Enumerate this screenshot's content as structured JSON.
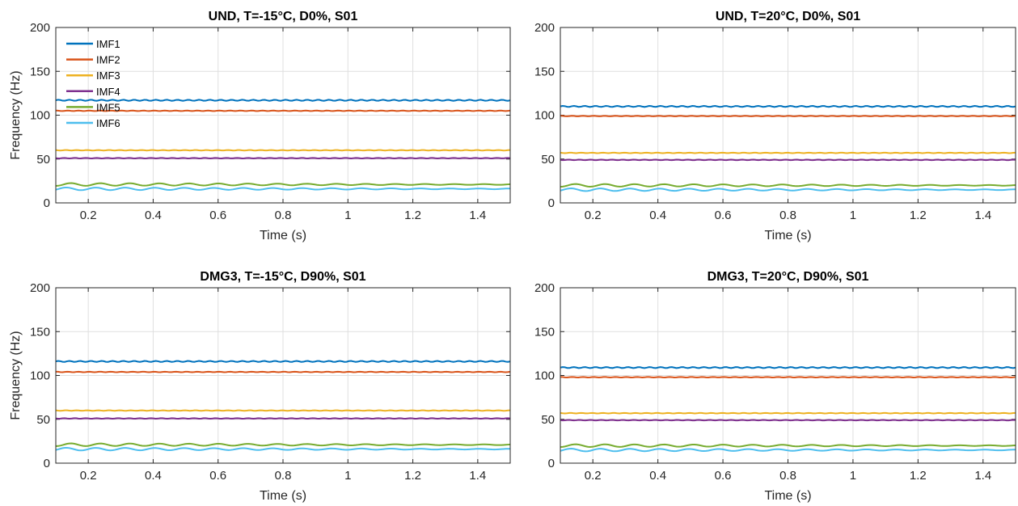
{
  "chart_data": [
    {
      "type": "line",
      "title": "UND, T=-15°C, D0%, S01",
      "xlabel": "Time (s)",
      "ylabel": "Frequency (Hz)",
      "xlim": [
        0.1,
        1.5
      ],
      "ylim": [
        0,
        200
      ],
      "xticks": [
        "0.2",
        "0.4",
        "0.6",
        "0.8",
        "1",
        "1.2",
        "1.4"
      ],
      "yticks": [
        "0",
        "50",
        "100",
        "150",
        "200"
      ],
      "grid": true,
      "legend": "top-left",
      "series": [
        {
          "name": "IMF1",
          "color": "#0072BD",
          "x": [
            0.1,
            1.5
          ],
          "y": [
            117,
            117
          ]
        },
        {
          "name": "IMF2",
          "color": "#D95319",
          "x": [
            0.1,
            1.5
          ],
          "y": [
            105,
            105
          ]
        },
        {
          "name": "IMF3",
          "color": "#EDB120",
          "x": [
            0.1,
            1.5
          ],
          "y": [
            60,
            60
          ]
        },
        {
          "name": "IMF4",
          "color": "#7E2F8E",
          "x": [
            0.1,
            1.5
          ],
          "y": [
            51,
            51
          ]
        },
        {
          "name": "IMF5",
          "color": "#77AC30",
          "x": [
            0.1,
            1.5
          ],
          "y": [
            21,
            21
          ]
        },
        {
          "name": "IMF6",
          "color": "#4DBEEE",
          "x": [
            0.1,
            1.5
          ],
          "y": [
            16,
            16
          ]
        }
      ]
    },
    {
      "type": "line",
      "title": "UND, T=20°C, D0%, S01",
      "xlabel": "Time (s)",
      "ylabel": "",
      "xlim": [
        0.1,
        1.5
      ],
      "ylim": [
        0,
        200
      ],
      "xticks": [
        "0.2",
        "0.4",
        "0.6",
        "0.8",
        "1",
        "1.2",
        "1.4"
      ],
      "yticks": [
        "0",
        "50",
        "100",
        "150",
        "200"
      ],
      "grid": true,
      "series": [
        {
          "color": "#0072BD",
          "x": [
            0.1,
            1.5
          ],
          "y": [
            110,
            110
          ]
        },
        {
          "color": "#D95319",
          "x": [
            0.1,
            1.5
          ],
          "y": [
            99,
            99
          ]
        },
        {
          "color": "#EDB120",
          "x": [
            0.1,
            1.5
          ],
          "y": [
            57,
            57
          ]
        },
        {
          "color": "#7E2F8E",
          "x": [
            0.1,
            1.5
          ],
          "y": [
            49,
            49
          ]
        },
        {
          "color": "#77AC30",
          "x": [
            0.1,
            1.5
          ],
          "y": [
            20,
            20
          ]
        },
        {
          "color": "#4DBEEE",
          "x": [
            0.1,
            1.5
          ],
          "y": [
            15,
            15
          ]
        }
      ]
    },
    {
      "type": "line",
      "title": "DMG3, T=-15°C, D90%, S01",
      "xlabel": "Time (s)",
      "ylabel": "Frequency (Hz)",
      "xlim": [
        0.1,
        1.5
      ],
      "ylim": [
        0,
        200
      ],
      "xticks": [
        "0.2",
        "0.4",
        "0.6",
        "0.8",
        "1",
        "1.2",
        "1.4"
      ],
      "yticks": [
        "0",
        "50",
        "100",
        "150",
        "200"
      ],
      "grid": true,
      "series": [
        {
          "color": "#0072BD",
          "x": [
            0.1,
            1.5
          ],
          "y": [
            116,
            116
          ]
        },
        {
          "color": "#D95319",
          "x": [
            0.1,
            1.5
          ],
          "y": [
            104,
            104
          ]
        },
        {
          "color": "#EDB120",
          "x": [
            0.1,
            1.5
          ],
          "y": [
            60,
            60
          ]
        },
        {
          "color": "#7E2F8E",
          "x": [
            0.1,
            1.5
          ],
          "y": [
            51,
            51
          ]
        },
        {
          "color": "#77AC30",
          "x": [
            0.1,
            1.5
          ],
          "y": [
            21,
            21
          ]
        },
        {
          "color": "#4DBEEE",
          "x": [
            0.1,
            1.5
          ],
          "y": [
            16,
            16
          ]
        }
      ]
    },
    {
      "type": "line",
      "title": "DMG3, T=20°C, D90%, S01",
      "xlabel": "Time (s)",
      "ylabel": "",
      "xlim": [
        0.1,
        1.5
      ],
      "ylim": [
        0,
        200
      ],
      "xticks": [
        "0.2",
        "0.4",
        "0.6",
        "0.8",
        "1",
        "1.2",
        "1.4"
      ],
      "yticks": [
        "0",
        "50",
        "100",
        "150",
        "200"
      ],
      "grid": true,
      "series": [
        {
          "color": "#0072BD",
          "x": [
            0.1,
            1.5
          ],
          "y": [
            109,
            109
          ]
        },
        {
          "color": "#D95319",
          "x": [
            0.1,
            1.5
          ],
          "y": [
            98,
            98
          ]
        },
        {
          "color": "#EDB120",
          "x": [
            0.1,
            1.5
          ],
          "y": [
            57,
            57
          ]
        },
        {
          "color": "#7E2F8E",
          "x": [
            0.1,
            1.5
          ],
          "y": [
            49,
            49
          ]
        },
        {
          "color": "#77AC30",
          "x": [
            0.1,
            1.5
          ],
          "y": [
            20,
            20
          ]
        },
        {
          "color": "#4DBEEE",
          "x": [
            0.1,
            1.5
          ],
          "y": [
            15,
            15
          ]
        }
      ]
    }
  ]
}
